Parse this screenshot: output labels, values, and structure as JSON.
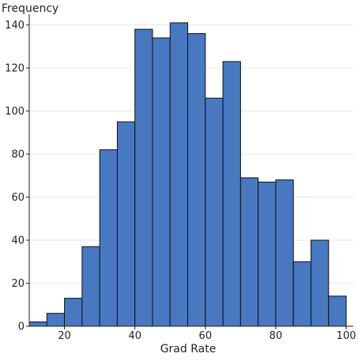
{
  "chart_data": {
    "type": "bar",
    "subtype": "histogram",
    "xlabel": "Grad Rate",
    "ylabel": "Frequency",
    "xlim": [
      10,
      102
    ],
    "ylim": [
      0,
      145
    ],
    "xticks": [
      20,
      40,
      60,
      80,
      100
    ],
    "yticks": [
      0,
      20,
      40,
      60,
      80,
      100,
      120,
      140
    ],
    "bin_width": 5,
    "bins": [
      {
        "start": 10,
        "end": 15,
        "value": 2
      },
      {
        "start": 15,
        "end": 20,
        "value": 6
      },
      {
        "start": 20,
        "end": 25,
        "value": 13
      },
      {
        "start": 25,
        "end": 30,
        "value": 37
      },
      {
        "start": 30,
        "end": 35,
        "value": 82
      },
      {
        "start": 35,
        "end": 40,
        "value": 95
      },
      {
        "start": 40,
        "end": 45,
        "value": 138
      },
      {
        "start": 45,
        "end": 50,
        "value": 134
      },
      {
        "start": 50,
        "end": 55,
        "value": 141
      },
      {
        "start": 55,
        "end": 60,
        "value": 136
      },
      {
        "start": 60,
        "end": 65,
        "value": 106
      },
      {
        "start": 65,
        "end": 70,
        "value": 123
      },
      {
        "start": 70,
        "end": 75,
        "value": 69
      },
      {
        "start": 75,
        "end": 80,
        "value": 67
      },
      {
        "start": 80,
        "end": 85,
        "value": 68
      },
      {
        "start": 85,
        "end": 90,
        "value": 30
      },
      {
        "start": 90,
        "end": 95,
        "value": 40
      },
      {
        "start": 95,
        "end": 100,
        "value": 14
      }
    ],
    "grid": "horizontal",
    "colors": {
      "bar_fill": "#4878c0",
      "bar_stroke": "#111111",
      "grid": "#e6e6e6",
      "axis": "#222222"
    }
  }
}
